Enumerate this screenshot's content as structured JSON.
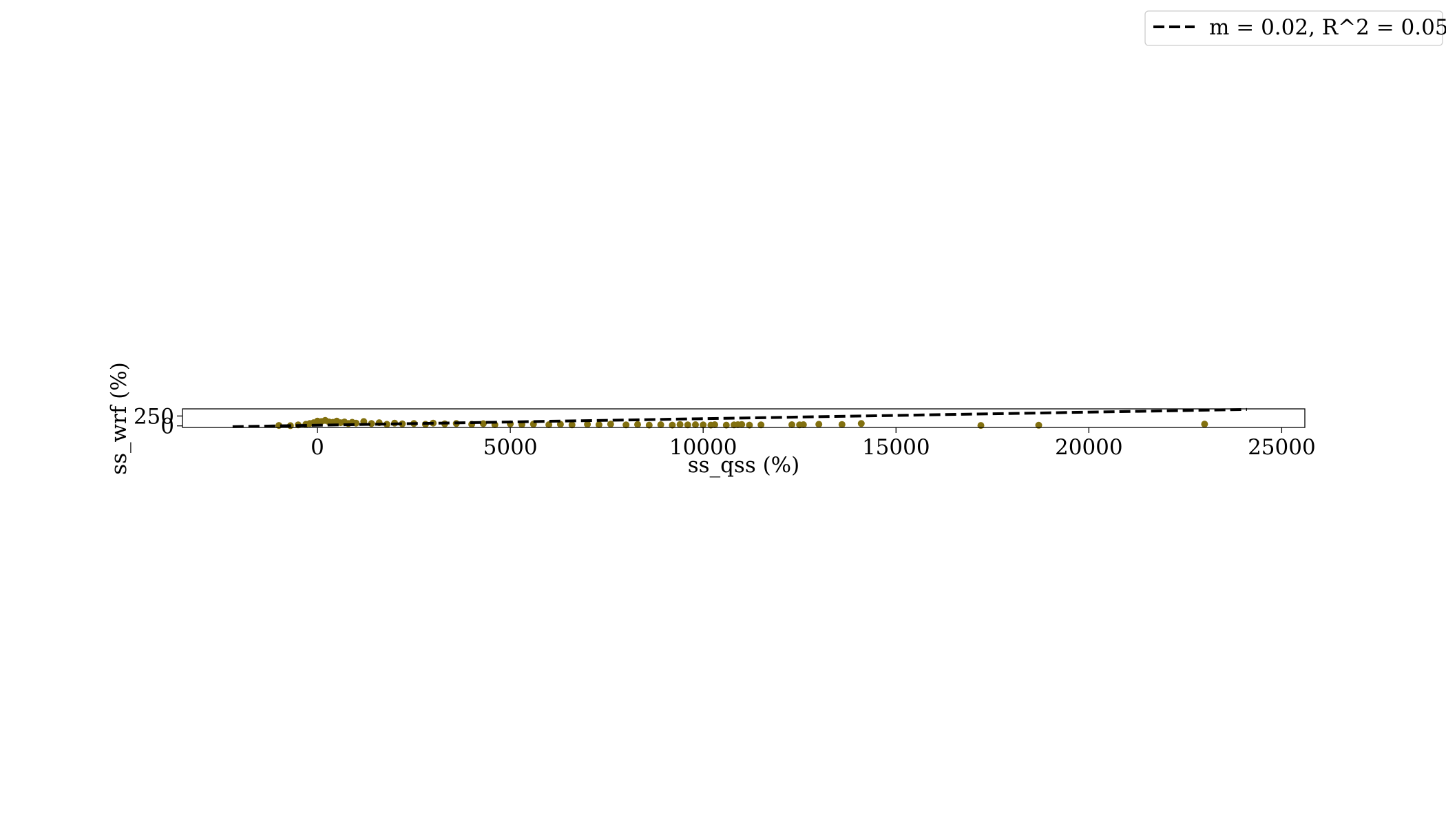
{
  "chart_data": {
    "type": "scatter",
    "xlabel": "ss_qss (%)",
    "ylabel": "ss_wrf (%)",
    "xlim": [
      -3500,
      25600
    ],
    "ylim": [
      -40,
      430
    ],
    "x_ticks": [
      0,
      5000,
      10000,
      15000,
      20000,
      25000
    ],
    "x_tick_labels": [
      "0",
      "5000",
      "10000",
      "15000",
      "20000",
      "25000"
    ],
    "y_ticks": [
      0,
      250
    ],
    "y_tick_labels": [
      "0",
      "250"
    ],
    "legend": {
      "placement": "top-right",
      "entries": [
        {
          "label": "m = 0.02, R^2 = 0.05",
          "style": "dashed",
          "color": "#000000"
        }
      ]
    },
    "point_color": "#82700f",
    "fit_line": {
      "slope": 0.02,
      "color": "#000000",
      "style": "dashed",
      "points": [
        [
          -2200,
          -20
        ],
        [
          24100,
          415
        ]
      ]
    },
    "series": [
      {
        "values": [
          [
            -1000,
            10
          ],
          [
            -700,
            5
          ],
          [
            -500,
            25
          ],
          [
            -300,
            40
          ],
          [
            -200,
            60
          ],
          [
            -100,
            80
          ],
          [
            0,
            120
          ],
          [
            100,
            110
          ],
          [
            200,
            140
          ],
          [
            300,
            100
          ],
          [
            400,
            90
          ],
          [
            500,
            120
          ],
          [
            600,
            80
          ],
          [
            700,
            100
          ],
          [
            800,
            60
          ],
          [
            900,
            90
          ],
          [
            1000,
            70
          ],
          [
            1200,
            110
          ],
          [
            1400,
            60
          ],
          [
            1600,
            80
          ],
          [
            1800,
            40
          ],
          [
            2000,
            70
          ],
          [
            2200,
            50
          ],
          [
            2500,
            60
          ],
          [
            2800,
            40
          ],
          [
            3000,
            70
          ],
          [
            3300,
            50
          ],
          [
            3600,
            60
          ],
          [
            4000,
            40
          ],
          [
            4300,
            55
          ],
          [
            4600,
            30
          ],
          [
            5000,
            50
          ],
          [
            5300,
            35
          ],
          [
            5600,
            45
          ],
          [
            6000,
            30
          ],
          [
            6300,
            40
          ],
          [
            6600,
            25
          ],
          [
            7000,
            40
          ],
          [
            7300,
            30
          ],
          [
            7600,
            45
          ],
          [
            8000,
            25
          ],
          [
            8300,
            35
          ],
          [
            8600,
            20
          ],
          [
            8900,
            30
          ],
          [
            9200,
            20
          ],
          [
            9400,
            35
          ],
          [
            9600,
            25
          ],
          [
            9800,
            30
          ],
          [
            10000,
            25
          ],
          [
            10200,
            20
          ],
          [
            10300,
            30
          ],
          [
            10600,
            20
          ],
          [
            10800,
            25
          ],
          [
            10900,
            30
          ],
          [
            11000,
            35
          ],
          [
            11200,
            20
          ],
          [
            11500,
            25
          ],
          [
            12300,
            30
          ],
          [
            12500,
            25
          ],
          [
            12600,
            30
          ],
          [
            13000,
            40
          ],
          [
            13600,
            35
          ],
          [
            14100,
            60
          ],
          [
            17200,
            10
          ],
          [
            18700,
            15
          ],
          [
            23000,
            45
          ]
        ]
      }
    ]
  }
}
